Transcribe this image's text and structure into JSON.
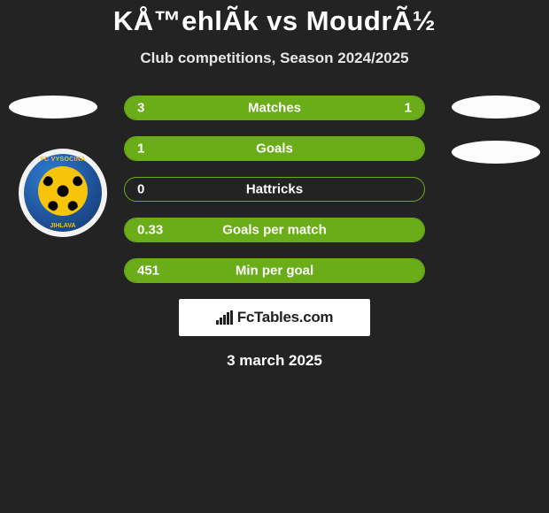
{
  "title": "KÅ™ehlÃ­k vs MoudrÃ½",
  "subtitle": "Club competitions, Season 2024/2025",
  "date": "3 march 2025",
  "branding_text": "FcTables.com",
  "badge": {
    "top_text": "FC VYSOCINA",
    "bottom_text": "JIHLAVA"
  },
  "colors": {
    "background": "#232323",
    "bar_fill": "#6aad19",
    "bar_border": "#6aad19",
    "text": "#ffffff",
    "oval": "#fdfdfd",
    "branding_bg": "#ffffff"
  },
  "rows": [
    {
      "label": "Matches",
      "left_val": "3",
      "right_val": "1",
      "left_pct": 72,
      "right_pct": 28,
      "show_right": true
    },
    {
      "label": "Goals",
      "left_val": "1",
      "right_val": "",
      "left_pct": 100,
      "right_pct": 0,
      "show_right": false
    },
    {
      "label": "Hattricks",
      "left_val": "0",
      "right_val": "",
      "left_pct": 0,
      "right_pct": 0,
      "show_right": false
    },
    {
      "label": "Goals per match",
      "left_val": "0.33",
      "right_val": "",
      "left_pct": 100,
      "right_pct": 0,
      "show_right": false
    },
    {
      "label": "Min per goal",
      "left_val": "451",
      "right_val": "",
      "left_pct": 100,
      "right_pct": 0,
      "show_right": false
    }
  ]
}
